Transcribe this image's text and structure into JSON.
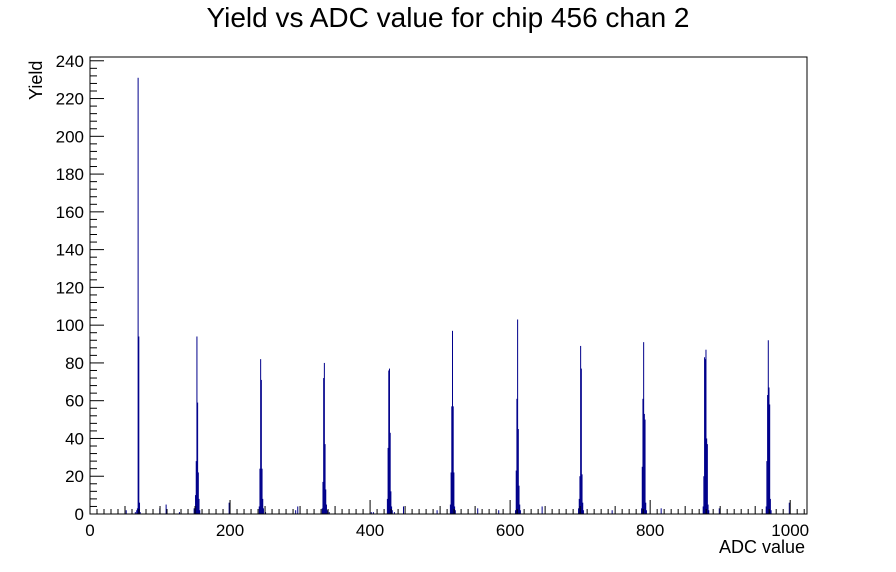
{
  "chart_data": {
    "type": "bar",
    "title": "Yield vs ADC value for chip 456 chan 2",
    "xlabel": "ADC value",
    "ylabel": "Yield",
    "xlim": [
      0,
      1024
    ],
    "ylim": [
      0,
      242
    ],
    "x_ticks": [
      0,
      200,
      400,
      600,
      800,
      1000
    ],
    "y_ticks": [
      0,
      20,
      40,
      60,
      80,
      100,
      120,
      140,
      160,
      180,
      200,
      220,
      240
    ],
    "color": "#00008b",
    "grid": false,
    "bars": [
      {
        "x": 51,
        "y": 2
      },
      {
        "x": 64,
        "y": 1
      },
      {
        "x": 66,
        "y": 2
      },
      {
        "x": 67,
        "y": 3
      },
      {
        "x": 68,
        "y": 231
      },
      {
        "x": 69,
        "y": 94
      },
      {
        "x": 70,
        "y": 6
      },
      {
        "x": 71,
        "y": 1
      },
      {
        "x": 99,
        "y": 3
      },
      {
        "x": 108,
        "y": 5
      },
      {
        "x": 127,
        "y": 1
      },
      {
        "x": 148,
        "y": 3
      },
      {
        "x": 150,
        "y": 10
      },
      {
        "x": 151,
        "y": 28
      },
      {
        "x": 152,
        "y": 94
      },
      {
        "x": 153,
        "y": 59
      },
      {
        "x": 154,
        "y": 22
      },
      {
        "x": 155,
        "y": 8
      },
      {
        "x": 156,
        "y": 2
      },
      {
        "x": 198,
        "y": 6
      },
      {
        "x": 241,
        "y": 4
      },
      {
        "x": 242,
        "y": 24
      },
      {
        "x": 243,
        "y": 82
      },
      {
        "x": 244,
        "y": 71
      },
      {
        "x": 245,
        "y": 24
      },
      {
        "x": 246,
        "y": 8
      },
      {
        "x": 247,
        "y": 3
      },
      {
        "x": 250,
        "y": 1
      },
      {
        "x": 293,
        "y": 2
      },
      {
        "x": 296,
        "y": 4
      },
      {
        "x": 331,
        "y": 3
      },
      {
        "x": 332,
        "y": 17
      },
      {
        "x": 333,
        "y": 72
      },
      {
        "x": 334,
        "y": 80
      },
      {
        "x": 335,
        "y": 37
      },
      {
        "x": 336,
        "y": 13
      },
      {
        "x": 337,
        "y": 5
      },
      {
        "x": 338,
        "y": 2
      },
      {
        "x": 341,
        "y": 1
      },
      {
        "x": 401,
        "y": 1
      },
      {
        "x": 404,
        "y": 1
      },
      {
        "x": 424,
        "y": 8
      },
      {
        "x": 425,
        "y": 35
      },
      {
        "x": 426,
        "y": 76
      },
      {
        "x": 427,
        "y": 77
      },
      {
        "x": 428,
        "y": 43
      },
      {
        "x": 429,
        "y": 12
      },
      {
        "x": 430,
        "y": 4
      },
      {
        "x": 431,
        "y": 2
      },
      {
        "x": 434,
        "y": 1
      },
      {
        "x": 447,
        "y": 4
      },
      {
        "x": 495,
        "y": 2
      },
      {
        "x": 514,
        "y": 5
      },
      {
        "x": 515,
        "y": 22
      },
      {
        "x": 516,
        "y": 57
      },
      {
        "x": 517,
        "y": 97
      },
      {
        "x": 518,
        "y": 57
      },
      {
        "x": 519,
        "y": 22
      },
      {
        "x": 520,
        "y": 4
      },
      {
        "x": 521,
        "y": 2
      },
      {
        "x": 553,
        "y": 3
      },
      {
        "x": 583,
        "y": 2
      },
      {
        "x": 607,
        "y": 2
      },
      {
        "x": 608,
        "y": 23
      },
      {
        "x": 609,
        "y": 61
      },
      {
        "x": 610,
        "y": 103
      },
      {
        "x": 611,
        "y": 45
      },
      {
        "x": 612,
        "y": 15
      },
      {
        "x": 613,
        "y": 5
      },
      {
        "x": 614,
        "y": 2
      },
      {
        "x": 645,
        "y": 4
      },
      {
        "x": 697,
        "y": 3
      },
      {
        "x": 698,
        "y": 8
      },
      {
        "x": 699,
        "y": 20
      },
      {
        "x": 700,
        "y": 89
      },
      {
        "x": 701,
        "y": 77
      },
      {
        "x": 702,
        "y": 21
      },
      {
        "x": 703,
        "y": 6
      },
      {
        "x": 704,
        "y": 2
      },
      {
        "x": 745,
        "y": 2
      },
      {
        "x": 787,
        "y": 3
      },
      {
        "x": 788,
        "y": 25
      },
      {
        "x": 789,
        "y": 61
      },
      {
        "x": 790,
        "y": 91
      },
      {
        "x": 791,
        "y": 53
      },
      {
        "x": 792,
        "y": 50
      },
      {
        "x": 793,
        "y": 6
      },
      {
        "x": 794,
        "y": 2
      },
      {
        "x": 815,
        "y": 3
      },
      {
        "x": 875,
        "y": 4
      },
      {
        "x": 876,
        "y": 20
      },
      {
        "x": 877,
        "y": 83
      },
      {
        "x": 878,
        "y": 82
      },
      {
        "x": 879,
        "y": 87
      },
      {
        "x": 880,
        "y": 40
      },
      {
        "x": 881,
        "y": 37
      },
      {
        "x": 882,
        "y": 5
      },
      {
        "x": 883,
        "y": 2
      },
      {
        "x": 898,
        "y": 3
      },
      {
        "x": 965,
        "y": 4
      },
      {
        "x": 966,
        "y": 28
      },
      {
        "x": 967,
        "y": 63
      },
      {
        "x": 968,
        "y": 92
      },
      {
        "x": 969,
        "y": 67
      },
      {
        "x": 970,
        "y": 58
      },
      {
        "x": 971,
        "y": 8
      },
      {
        "x": 972,
        "y": 2
      },
      {
        "x": 998,
        "y": 6
      }
    ]
  }
}
